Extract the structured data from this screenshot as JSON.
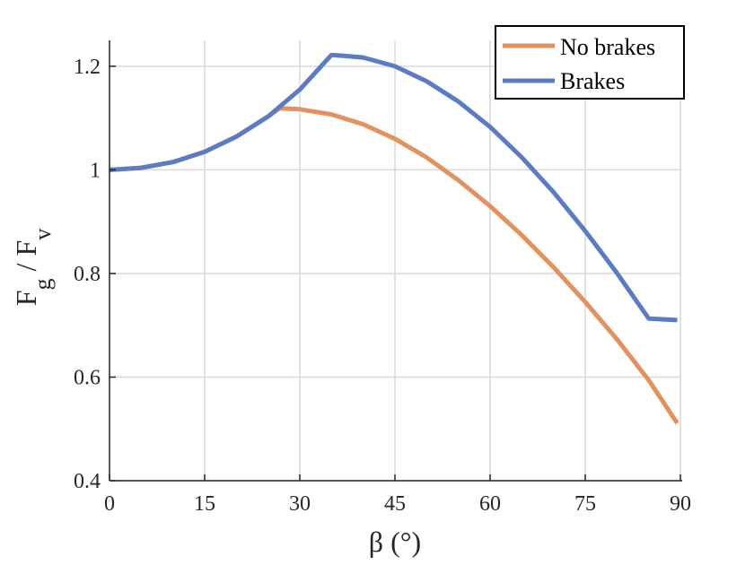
{
  "chart_data": {
    "type": "line",
    "xlabel": "β (°)",
    "ylabel_parts": [
      "F",
      "g",
      " / F",
      "v"
    ],
    "xlim": [
      0,
      90
    ],
    "ylim": [
      0.4,
      1.25
    ],
    "xticks": [
      0,
      15,
      30,
      45,
      60,
      75,
      90
    ],
    "yticks": [
      0.4,
      0.6,
      0.8,
      1,
      1.2
    ],
    "ytick_labels": [
      "0.4",
      "0.6",
      "0.8",
      "1",
      "1.2"
    ],
    "grid": true,
    "legend": "top-right",
    "series": [
      {
        "name": "No brakes",
        "color": "#E3915E",
        "x": [
          0,
          5,
          10,
          15,
          20,
          25,
          26.8,
          30,
          35,
          40,
          45,
          50,
          55,
          60,
          65,
          70,
          75,
          80,
          85,
          89.5
        ],
        "y": [
          1.0,
          1.004,
          1.015,
          1.035,
          1.064,
          1.103,
          1.119,
          1.117,
          1.107,
          1.088,
          1.06,
          1.024,
          0.98,
          0.93,
          0.874,
          0.812,
          0.745,
          0.673,
          0.594,
          0.511
        ]
      },
      {
        "name": "Brakes",
        "color": "#5B7BC4",
        "x": [
          0,
          5,
          10,
          15,
          20,
          25,
          30,
          35,
          40,
          45,
          50,
          55,
          60,
          65,
          70,
          75,
          80,
          85,
          89.5
        ],
        "y": [
          1.0,
          1.004,
          1.015,
          1.035,
          1.064,
          1.103,
          1.155,
          1.222,
          1.217,
          1.2,
          1.171,
          1.132,
          1.083,
          1.024,
          0.957,
          0.882,
          0.801,
          0.713,
          0.71
        ]
      }
    ]
  }
}
